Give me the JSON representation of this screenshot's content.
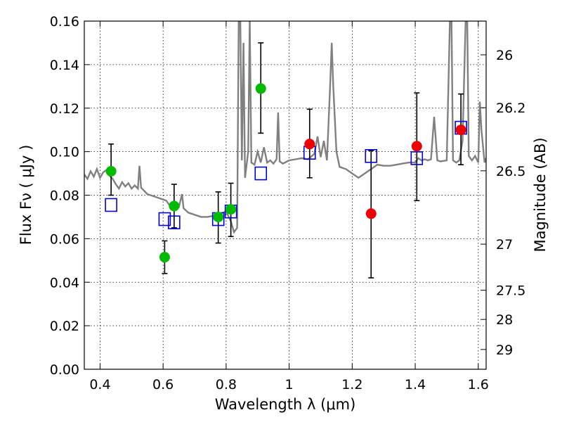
{
  "chart_data": {
    "type": "scatter",
    "title": "",
    "xlabel": "Wavelength  λ (μm)",
    "ylabel": "Flux  Fν  ( μJy )",
    "y2label": "Magnitude (AB)",
    "xlim": [
      0.35,
      1.625
    ],
    "ylim": [
      0.0,
      0.16
    ],
    "grid": true,
    "x_ticks": [
      0.4,
      0.6,
      0.8,
      1.0,
      1.2,
      1.4,
      1.6
    ],
    "x_tick_labels": [
      "0.4",
      "0.6",
      "0.8",
      "1",
      "1.2",
      "1.4",
      "1.6"
    ],
    "y_ticks": [
      0.0,
      0.02,
      0.04,
      0.06,
      0.08,
      0.1,
      0.12,
      0.14,
      0.16
    ],
    "y_tick_labels": [
      "0.00",
      "0.02",
      "0.04",
      "0.06",
      "0.08",
      "0.10",
      "0.12",
      "0.14",
      "0.16"
    ],
    "y2_ticks": [
      {
        "label": "26",
        "flux": 0.1445
      },
      {
        "label": "26.2",
        "flux": 0.1202
      },
      {
        "label": "26.5",
        "flux": 0.0912
      },
      {
        "label": "27",
        "flux": 0.0575
      },
      {
        "label": "27.5",
        "flux": 0.0363
      },
      {
        "label": "28",
        "flux": 0.0229
      },
      {
        "label": "29",
        "flux": 0.0091
      }
    ],
    "colors": {
      "spectrum": "#808080",
      "green": "#00bb00",
      "red": "#ee0000",
      "model": "#0000dd",
      "errorbar": "#000000"
    },
    "series": [
      {
        "name": "green detections",
        "marker": "circle",
        "color": "#00bb00",
        "points": [
          {
            "x": 0.435,
            "y": 0.091,
            "lo": 0.08,
            "hi": 0.1035
          },
          {
            "x": 0.605,
            "y": 0.0515,
            "lo": 0.044,
            "hi": 0.059
          },
          {
            "x": 0.635,
            "y": 0.075,
            "lo": 0.065,
            "hi": 0.085
          },
          {
            "x": 0.775,
            "y": 0.07,
            "lo": 0.058,
            "hi": 0.0815
          },
          {
            "x": 0.815,
            "y": 0.0735,
            "lo": 0.061,
            "hi": 0.0855
          },
          {
            "x": 0.91,
            "y": 0.129,
            "lo": 0.1085,
            "hi": 0.15
          }
        ]
      },
      {
        "name": "red detections",
        "marker": "circle",
        "color": "#ee0000",
        "points": [
          {
            "x": 1.065,
            "y": 0.1035,
            "lo": 0.088,
            "hi": 0.1195
          },
          {
            "x": 1.26,
            "y": 0.0715,
            "lo": 0.042,
            "hi": 0.1005
          },
          {
            "x": 1.405,
            "y": 0.1025,
            "lo": 0.0775,
            "hi": 0.127
          },
          {
            "x": 1.545,
            "y": 0.11,
            "lo": 0.094,
            "hi": 0.1265
          }
        ]
      },
      {
        "name": "model fluxes",
        "marker": "open-square",
        "color": "#0000dd",
        "points": [
          {
            "x": 0.435,
            "y": 0.0755
          },
          {
            "x": 0.605,
            "y": 0.069
          },
          {
            "x": 0.635,
            "y": 0.0675
          },
          {
            "x": 0.775,
            "y": 0.069
          },
          {
            "x": 0.815,
            "y": 0.0725
          },
          {
            "x": 0.91,
            "y": 0.09
          },
          {
            "x": 1.065,
            "y": 0.0995
          },
          {
            "x": 1.26,
            "y": 0.098
          },
          {
            "x": 1.405,
            "y": 0.097
          },
          {
            "x": 1.545,
            "y": 0.111
          }
        ]
      }
    ],
    "spectrum": [
      [
        0.35,
        0.0895
      ],
      [
        0.36,
        0.0875
      ],
      [
        0.37,
        0.091
      ],
      [
        0.38,
        0.0885
      ],
      [
        0.39,
        0.092
      ],
      [
        0.4,
        0.088
      ],
      [
        0.41,
        0.0905
      ],
      [
        0.42,
        0.0915
      ],
      [
        0.43,
        0.089
      ],
      [
        0.44,
        0.0875
      ],
      [
        0.45,
        0.085
      ],
      [
        0.46,
        0.083
      ],
      [
        0.47,
        0.086
      ],
      [
        0.48,
        0.084
      ],
      [
        0.49,
        0.0855
      ],
      [
        0.5,
        0.083
      ],
      [
        0.51,
        0.0845
      ],
      [
        0.52,
        0.083
      ],
      [
        0.525,
        0.0935
      ],
      [
        0.53,
        0.0835
      ],
      [
        0.55,
        0.0805
      ],
      [
        0.57,
        0.0795
      ],
      [
        0.59,
        0.0785
      ],
      [
        0.61,
        0.0775
      ],
      [
        0.62,
        0.0755
      ],
      [
        0.635,
        0.0745
      ],
      [
        0.65,
        0.0745
      ],
      [
        0.66,
        0.0805
      ],
      [
        0.665,
        0.074
      ],
      [
        0.68,
        0.072
      ],
      [
        0.7,
        0.071
      ],
      [
        0.72,
        0.07
      ],
      [
        0.74,
        0.07
      ],
      [
        0.76,
        0.0705
      ],
      [
        0.78,
        0.0715
      ],
      [
        0.8,
        0.0725
      ],
      [
        0.815,
        0.068
      ],
      [
        0.825,
        0.063
      ],
      [
        0.835,
        0.065
      ],
      [
        0.84,
        0.16
      ],
      [
        0.845,
        0.16
      ],
      [
        0.85,
        0.096
      ],
      [
        0.855,
        0.15
      ],
      [
        0.86,
        0.088
      ],
      [
        0.87,
        0.1
      ],
      [
        0.875,
        0.161
      ],
      [
        0.88,
        0.095
      ],
      [
        0.89,
        0.094
      ],
      [
        0.9,
        0.1
      ],
      [
        0.91,
        0.095
      ],
      [
        0.92,
        0.102
      ],
      [
        0.93,
        0.095
      ],
      [
        0.94,
        0.096
      ],
      [
        0.95,
        0.0945
      ],
      [
        0.96,
        0.0965
      ],
      [
        0.965,
        0.118
      ],
      [
        0.97,
        0.0955
      ],
      [
        0.98,
        0.0945
      ],
      [
        1.0,
        0.096
      ],
      [
        1.02,
        0.0965
      ],
      [
        1.04,
        0.097
      ],
      [
        1.06,
        0.0965
      ],
      [
        1.08,
        0.099
      ],
      [
        1.09,
        0.107
      ],
      [
        1.1,
        0.0975
      ],
      [
        1.11,
        0.105
      ],
      [
        1.12,
        0.096
      ],
      [
        1.13,
        0.13
      ],
      [
        1.135,
        0.15
      ],
      [
        1.14,
        0.13
      ],
      [
        1.15,
        0.1
      ],
      [
        1.16,
        0.093
      ],
      [
        1.18,
        0.092
      ],
      [
        1.2,
        0.09
      ],
      [
        1.22,
        0.088
      ],
      [
        1.24,
        0.09
      ],
      [
        1.26,
        0.092
      ],
      [
        1.28,
        0.094
      ],
      [
        1.3,
        0.0935
      ],
      [
        1.32,
        0.0935
      ],
      [
        1.34,
        0.094
      ],
      [
        1.36,
        0.0945
      ],
      [
        1.38,
        0.095
      ],
      [
        1.4,
        0.095
      ],
      [
        1.41,
        0.097
      ],
      [
        1.42,
        0.096
      ],
      [
        1.43,
        0.0965
      ],
      [
        1.44,
        0.096
      ],
      [
        1.45,
        0.0965
      ],
      [
        1.46,
        0.116
      ],
      [
        1.47,
        0.096
      ],
      [
        1.48,
        0.0955
      ],
      [
        1.5,
        0.096
      ],
      [
        1.51,
        0.16
      ],
      [
        1.515,
        0.16
      ],
      [
        1.52,
        0.096
      ],
      [
        1.53,
        0.095
      ],
      [
        1.54,
        0.096
      ],
      [
        1.55,
        0.105
      ],
      [
        1.56,
        0.16
      ],
      [
        1.565,
        0.16
      ],
      [
        1.57,
        0.098
      ],
      [
        1.58,
        0.096
      ],
      [
        1.59,
        0.098
      ],
      [
        1.6,
        0.095
      ],
      [
        1.605,
        0.123
      ],
      [
        1.61,
        0.11
      ],
      [
        1.62,
        0.095
      ],
      [
        1.625,
        0.097
      ]
    ]
  }
}
